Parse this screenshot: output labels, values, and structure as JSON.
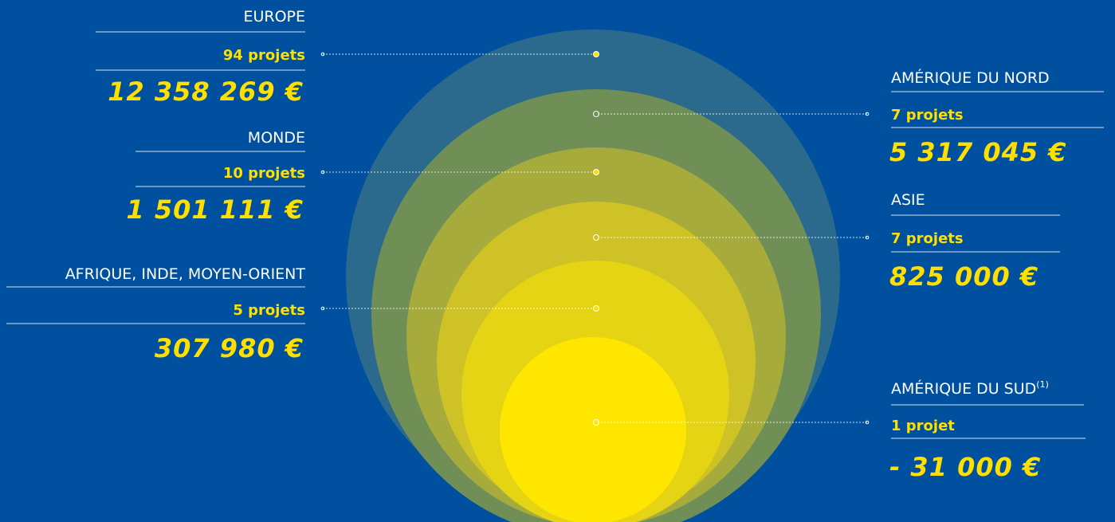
{
  "regions": [
    {
      "name": "EUROPE",
      "projects": "94 projets",
      "amount": "12 358 269 €"
    },
    {
      "name": "MONDE",
      "projects": "10 projets",
      "amount": "1 501 111 €"
    },
    {
      "name": "AFRIQUE, INDE, MOYEN-ORIENT",
      "projects": "5 projets",
      "amount": "307 980 €"
    },
    {
      "name": "AMÉRIQUE DU NORD",
      "projects": "7 projets",
      "amount": "5 317 045 €"
    },
    {
      "name": "ASIE",
      "projects": "7 projets",
      "amount": "825 000 €"
    },
    {
      "name": "AMÉRIQUE DU SUD",
      "note": "(1)",
      "projects": "1 projet",
      "amount": "- 31 000 €"
    }
  ]
}
